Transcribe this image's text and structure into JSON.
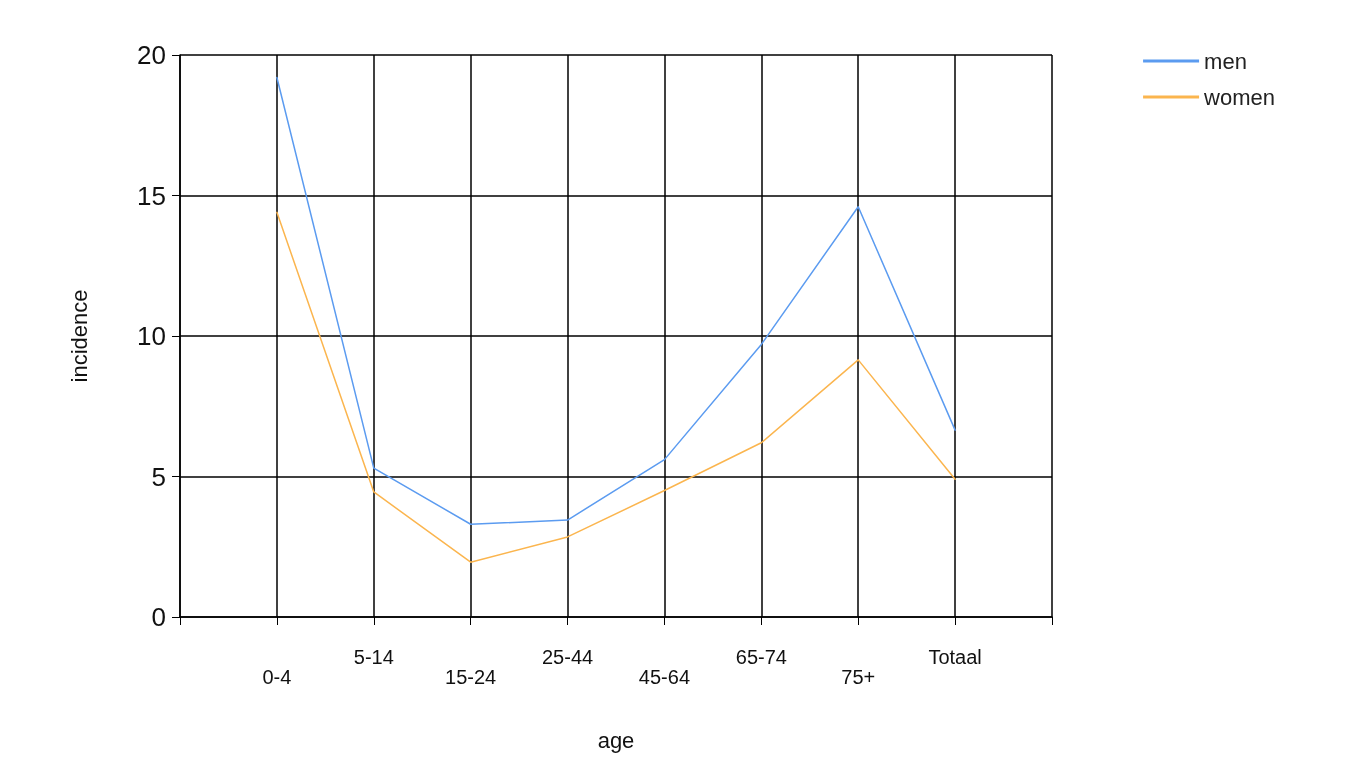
{
  "chart_data": {
    "type": "line",
    "xlabel": "age",
    "ylabel": "incidence",
    "categories": [
      "0-4",
      "5-14",
      "15-24",
      "25-44",
      "45-64",
      "65-74",
      "75+",
      "Totaal"
    ],
    "series": [
      {
        "name": "men",
        "color": "#5b9bf0",
        "values": [
          19.2,
          5.3,
          3.3,
          3.45,
          5.6,
          9.7,
          14.6,
          6.65
        ]
      },
      {
        "name": "women",
        "color": "#fbb54e",
        "values": [
          14.4,
          4.45,
          1.95,
          2.85,
          4.5,
          6.2,
          9.15,
          4.9
        ]
      }
    ],
    "ylim": [
      0,
      20
    ],
    "yticks": [
      0,
      5,
      10,
      15,
      20
    ],
    "grid": true,
    "legend": "top right",
    "marker": "none",
    "line_style": "solid"
  }
}
